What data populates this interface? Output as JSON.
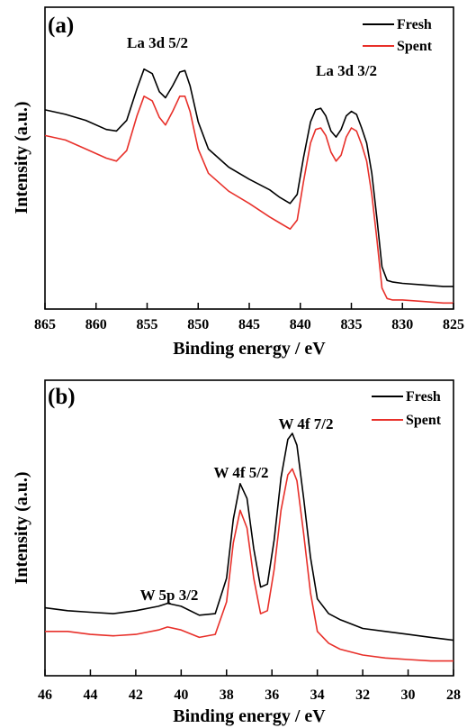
{
  "chart_data": [
    {
      "panel_label": "(a)",
      "type": "line",
      "title": "",
      "xlabel": "Binding energy / eV",
      "ylabel": "Intensity (a.u.)",
      "xlim": [
        865,
        825
      ],
      "x_reversed": true,
      "xticks": [
        865,
        860,
        855,
        850,
        845,
        840,
        835,
        830,
        825
      ],
      "ylim": [
        0,
        1
      ],
      "yticks": [],
      "grid": false,
      "legend": "top-right",
      "annotations": [
        {
          "text": "La 3d 5/2",
          "x": 853.2,
          "y": 0.955
        },
        {
          "text": "La 3d 3/2",
          "x": 836.8,
          "y": 0.8
        }
      ],
      "series": [
        {
          "name": "Fresh",
          "color": "#000000",
          "x": [
            865,
            863,
            861,
            859,
            858,
            857,
            856,
            855.3,
            854.5,
            853.8,
            853.2,
            852.5,
            851.8,
            851.3,
            850.8,
            850,
            849,
            847,
            845,
            843,
            842,
            841,
            840.3,
            839.7,
            839,
            838.5,
            838,
            837.5,
            837,
            836.5,
            836,
            835.5,
            835,
            834.5,
            834,
            833.5,
            833,
            832.5,
            832,
            831.5,
            831,
            830,
            828,
            826,
            825
          ],
          "y": [
            0.66,
            0.645,
            0.625,
            0.595,
            0.59,
            0.625,
            0.73,
            0.795,
            0.78,
            0.72,
            0.7,
            0.74,
            0.785,
            0.79,
            0.74,
            0.62,
            0.53,
            0.47,
            0.43,
            0.395,
            0.37,
            0.35,
            0.38,
            0.5,
            0.62,
            0.66,
            0.665,
            0.64,
            0.59,
            0.57,
            0.595,
            0.64,
            0.655,
            0.645,
            0.6,
            0.55,
            0.45,
            0.3,
            0.14,
            0.095,
            0.09,
            0.085,
            0.08,
            0.075,
            0.075
          ]
        },
        {
          "name": "Spent",
          "color": "#e8302a",
          "x": [
            865,
            863,
            861,
            859,
            858,
            857,
            856,
            855.3,
            854.5,
            853.8,
            853.2,
            852.5,
            851.8,
            851.3,
            850.8,
            850,
            849,
            847,
            845,
            843,
            842,
            841,
            840.3,
            839.7,
            839,
            838.5,
            838,
            837.5,
            837,
            836.5,
            836,
            835.5,
            835,
            834.5,
            834,
            833.5,
            833,
            832.5,
            832,
            831.5,
            831,
            830,
            828,
            826,
            825
          ],
          "y": [
            0.575,
            0.56,
            0.53,
            0.5,
            0.49,
            0.525,
            0.64,
            0.705,
            0.69,
            0.635,
            0.61,
            0.655,
            0.705,
            0.705,
            0.655,
            0.53,
            0.45,
            0.39,
            0.35,
            0.305,
            0.285,
            0.265,
            0.295,
            0.42,
            0.55,
            0.595,
            0.6,
            0.575,
            0.52,
            0.49,
            0.51,
            0.57,
            0.6,
            0.59,
            0.545,
            0.49,
            0.38,
            0.23,
            0.07,
            0.035,
            0.03,
            0.03,
            0.025,
            0.02,
            0.02
          ]
        }
      ]
    },
    {
      "panel_label": "(b)",
      "type": "line",
      "title": "",
      "xlabel": "Binding energy / eV",
      "ylabel": "Intensity (a.u.)",
      "xlim": [
        46,
        28
      ],
      "x_reversed": true,
      "xticks": [
        46,
        44,
        42,
        40,
        38,
        36,
        34,
        32,
        30,
        28
      ],
      "ylim": [
        0,
        1
      ],
      "yticks": [],
      "grid": false,
      "legend": "top-right",
      "annotations": [
        {
          "text": "W 5p 3/2",
          "x": 40.8,
          "y": 0.3
        },
        {
          "text": "W 4f 5/2",
          "x": 37.2,
          "y": 0.68
        },
        {
          "text": "W 4f 7/2",
          "x": 35.0,
          "y": 0.855
        }
      ],
      "series": [
        {
          "name": "Fresh",
          "color": "#000000",
          "x": [
            46,
            45,
            44,
            43,
            42,
            41,
            40.6,
            40,
            39.2,
            38.5,
            38,
            37.7,
            37.4,
            37.1,
            36.8,
            36.5,
            36.2,
            35.9,
            35.6,
            35.3,
            35.1,
            34.9,
            34.6,
            34.3,
            34,
            33.5,
            33,
            32,
            31,
            30,
            29,
            28
          ],
          "y": [
            0.23,
            0.22,
            0.215,
            0.21,
            0.22,
            0.235,
            0.245,
            0.235,
            0.205,
            0.21,
            0.33,
            0.53,
            0.65,
            0.6,
            0.43,
            0.3,
            0.31,
            0.46,
            0.67,
            0.8,
            0.82,
            0.78,
            0.6,
            0.4,
            0.26,
            0.21,
            0.19,
            0.16,
            0.15,
            0.14,
            0.13,
            0.12
          ]
        },
        {
          "name": "Spent",
          "color": "#e8302a",
          "x": [
            46,
            45,
            44,
            43,
            42,
            41,
            40.6,
            40,
            39.2,
            38.5,
            38,
            37.7,
            37.4,
            37.1,
            36.8,
            36.5,
            36.2,
            35.9,
            35.6,
            35.3,
            35.1,
            34.9,
            34.6,
            34.3,
            34,
            33.5,
            33,
            32,
            31,
            30,
            29,
            28
          ],
          "y": [
            0.15,
            0.15,
            0.14,
            0.135,
            0.14,
            0.155,
            0.165,
            0.155,
            0.13,
            0.14,
            0.25,
            0.45,
            0.56,
            0.5,
            0.33,
            0.21,
            0.22,
            0.36,
            0.56,
            0.68,
            0.7,
            0.66,
            0.48,
            0.28,
            0.15,
            0.11,
            0.09,
            0.07,
            0.06,
            0.055,
            0.05,
            0.05
          ]
        }
      ]
    }
  ]
}
